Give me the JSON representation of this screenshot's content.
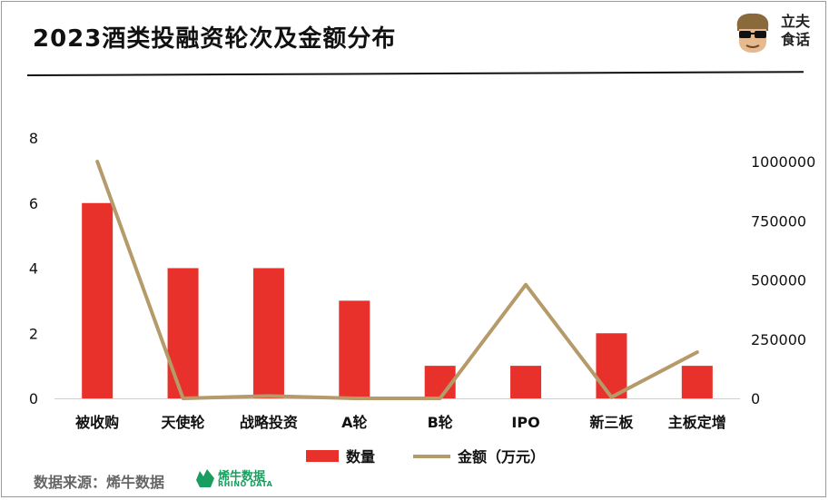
{
  "title": "2023酒类投融资轮次及金额分布",
  "brand": {
    "line1": "立夫",
    "line2": "食话"
  },
  "source": {
    "label": "数据来源：烯牛数据",
    "logo_cn": "烯牛数据",
    "logo_en": "RHINO DATA"
  },
  "colors": {
    "bar": "#e8312a",
    "line": "#b59a6a",
    "logo": "#1a9e5f"
  },
  "chart_data": {
    "type": "bar",
    "categories": [
      "被收购",
      "天使轮",
      "战略投资",
      "A轮",
      "B轮",
      "IPO",
      "新三板",
      "主板定增"
    ],
    "series": [
      {
        "name": "数量",
        "type": "bar",
        "axis": "left",
        "values": [
          6,
          4,
          4,
          3,
          1,
          1,
          2,
          1
        ]
      },
      {
        "name": "金额（万元）",
        "type": "line",
        "axis": "right",
        "values": [
          1000000,
          0,
          10000,
          0,
          0,
          480000,
          5000,
          195000
        ]
      }
    ],
    "y_left": {
      "ticks": [
        "0",
        "2",
        "4",
        "6",
        "8"
      ],
      "min": 0,
      "max": 8
    },
    "y_right": {
      "ticks": [
        "0",
        "250000",
        "500000",
        "750000",
        "1000000"
      ],
      "min": 0,
      "max": 1000000
    },
    "legend": "bottom",
    "grid": false
  }
}
